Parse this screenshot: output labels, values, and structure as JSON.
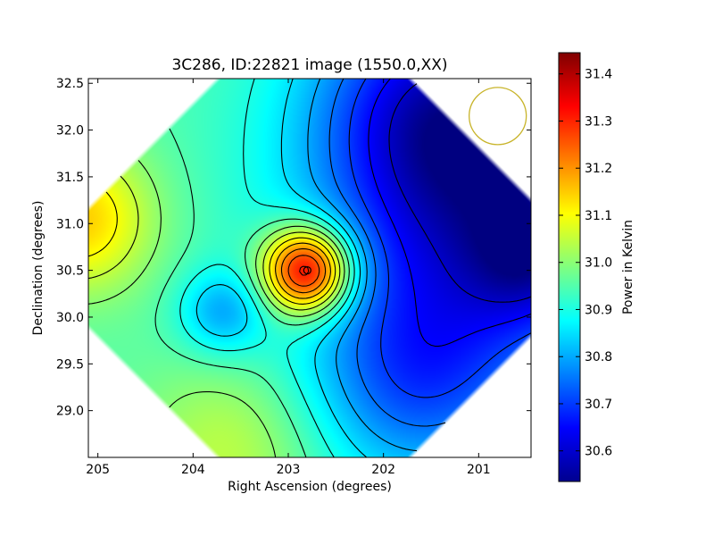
{
  "chart_data": {
    "type": "heatmap",
    "title": "3C286, ID:22821 image (1550.0,XX)",
    "xlabel": "Right Ascension (degrees)",
    "ylabel": "Declination (degrees)",
    "colorbar_label": "Power in Kelvin",
    "xlim": [
      205.1,
      200.45
    ],
    "ylim": [
      28.5,
      32.55
    ],
    "x_ticks": [
      205,
      204,
      203,
      202,
      201
    ],
    "y_ticks": [
      32.5,
      32.0,
      31.5,
      31.0,
      30.5,
      30.0,
      29.5,
      29.0
    ],
    "colorbar_range": [
      30.535,
      31.445
    ],
    "colorbar_ticks": [
      31.4,
      31.3,
      31.2,
      31.1,
      31.0,
      30.9,
      30.8,
      30.7,
      30.6
    ],
    "colormap": "jet",
    "background": 30.95,
    "field": [
      {
        "ra": 202.8,
        "dec": 30.5,
        "amp": 0.47,
        "sigma": 0.33
      },
      {
        "ra": 205.2,
        "dec": 31.05,
        "amp": 0.2,
        "sigma": 0.55
      },
      {
        "ra": 203.7,
        "dec": 30.05,
        "amp": -0.14,
        "sigma": 0.32
      },
      {
        "ra": 203.6,
        "dec": 28.6,
        "amp": 0.1,
        "sigma": 0.7
      },
      {
        "ra": 200.8,
        "dec": 31.2,
        "amp": -0.32,
        "sigma": 1.3
      },
      {
        "ra": 200.45,
        "dec": 30.6,
        "amp": -0.12,
        "sigma": 0.45
      },
      {
        "ra": 201.5,
        "dec": 32.3,
        "amp": -0.2,
        "sigma": 0.9
      },
      {
        "ra": 201.7,
        "dec": 29.3,
        "amp": -0.18,
        "sigma": 0.8
      }
    ],
    "annotations": [
      {
        "type": "circle",
        "ra": 200.8,
        "dec": 32.15,
        "radius_deg": 0.3,
        "color": "#c8b42a"
      },
      {
        "type": "marker",
        "ra": 202.8,
        "dec": 30.5,
        "shape": "circle"
      }
    ]
  }
}
